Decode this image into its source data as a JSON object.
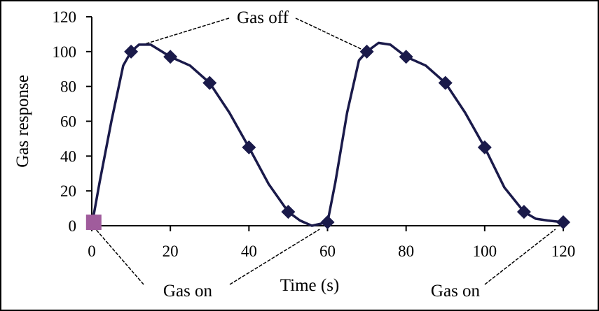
{
  "chart_data": {
    "type": "line",
    "xlabel": "Time (s)",
    "ylabel": "Gas response",
    "xlim": [
      0,
      120
    ],
    "ylim": [
      0,
      120
    ],
    "xticks": [
      0,
      20,
      40,
      60,
      80,
      100,
      120
    ],
    "yticks": [
      0,
      20,
      40,
      60,
      80,
      100,
      120
    ],
    "grid": false,
    "colors": {
      "line": "#1a1a4a",
      "marker": "#1a1a4a",
      "start_marker": "#a05c9c"
    },
    "curve": {
      "x": [
        0,
        2,
        5,
        8,
        10,
        12,
        15,
        20,
        25,
        30,
        35,
        40,
        45,
        50,
        53,
        56,
        60,
        62,
        65,
        68,
        70,
        73,
        76,
        80,
        85,
        90,
        95,
        100,
        105,
        110,
        113,
        116,
        120
      ],
      "y": [
        0,
        25,
        60,
        92,
        100,
        104,
        104,
        97,
        92,
        82,
        65,
        45,
        24,
        8,
        3,
        0,
        2,
        25,
        65,
        95,
        100,
        105,
        104,
        97,
        92,
        82,
        65,
        45,
        22,
        8,
        4,
        3,
        2
      ]
    },
    "markers": {
      "x": [
        10,
        20,
        30,
        40,
        50,
        60,
        70,
        80,
        90,
        100,
        110,
        120
      ],
      "y": [
        100,
        97,
        82,
        45,
        8,
        2,
        100,
        97,
        82,
        45,
        8,
        2
      ]
    },
    "start_point": {
      "x": 0.5,
      "y": 2
    },
    "annotations": [
      {
        "text": "Gas off",
        "x": [
          13,
          69
        ],
        "y": [
          104,
          101
        ]
      },
      {
        "text": "Gas on",
        "x": [
          1,
          58
        ],
        "y": [
          -2,
          -2
        ]
      },
      {
        "text": "Gas on",
        "x": [
          118
        ],
        "y": [
          -2
        ]
      }
    ]
  }
}
